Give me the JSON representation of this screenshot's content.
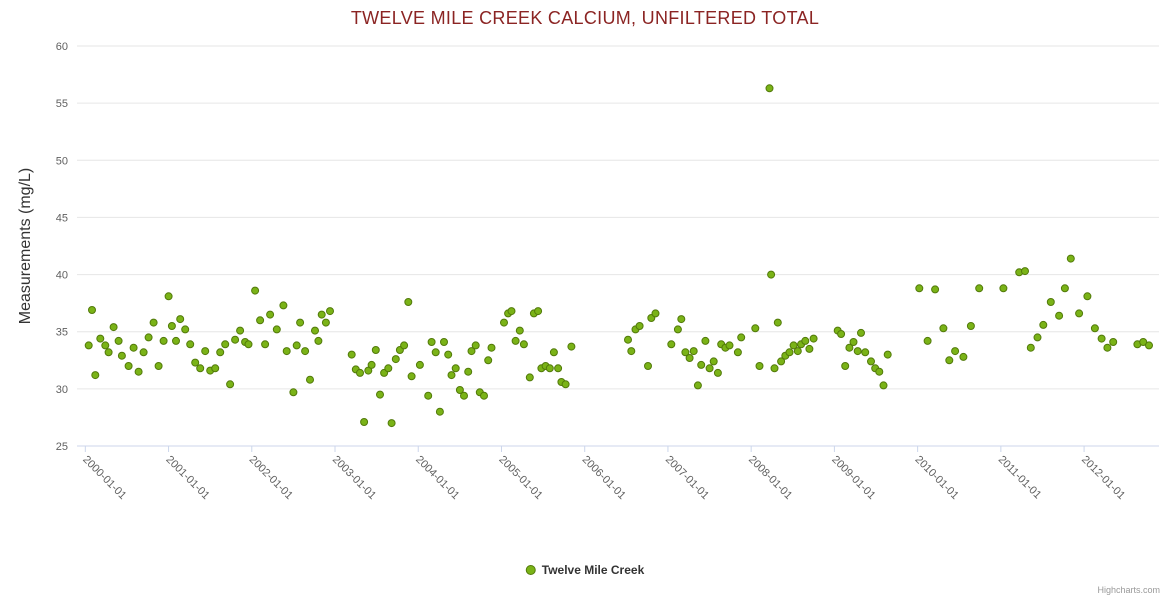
{
  "page": {
    "credits": "Highcharts.com"
  },
  "chart_data": {
    "type": "scatter",
    "title": "TWELVE MILE CREEK CALCIUM, UNFILTERED TOTAL",
    "xlabel": "",
    "ylabel": "Measurements (mg/L)",
    "ylim": [
      25,
      60
    ],
    "xlim": [
      1999.9,
      2012.9
    ],
    "y_ticks": [
      25,
      30,
      35,
      40,
      45,
      50,
      55,
      60
    ],
    "x_tick_values": [
      2000,
      2001,
      2002,
      2003,
      2004,
      2005,
      2006,
      2007,
      2008,
      2009,
      2010,
      2011,
      2012
    ],
    "x_tick_labels": [
      "2000-01-01",
      "2001-01-01",
      "2002-01-01",
      "2003-01-01",
      "2004-01-01",
      "2005-01-01",
      "2006-01-01",
      "2007-01-01",
      "2008-01-01",
      "2009-01-01",
      "2010-01-01",
      "2011-01-01",
      "2012-01-01"
    ],
    "grid": "horizontal-only",
    "legend_position": "bottom-center",
    "colors": {
      "point_fill": "#7ab317",
      "point_stroke": "#527a0a",
      "title": "#8b2423",
      "axis_label": "#606060",
      "grid_line": "#e6e6e6",
      "axis_line": "#ccd6eb"
    },
    "series": [
      {
        "name": "Twelve Mile Creek",
        "points": [
          [
            2000.04,
            33.8
          ],
          [
            2000.08,
            36.9
          ],
          [
            2000.12,
            31.2
          ],
          [
            2000.18,
            34.4
          ],
          [
            2000.24,
            33.8
          ],
          [
            2000.28,
            33.2
          ],
          [
            2000.34,
            35.4
          ],
          [
            2000.4,
            34.2
          ],
          [
            2000.44,
            32.9
          ],
          [
            2000.52,
            32.0
          ],
          [
            2000.58,
            33.6
          ],
          [
            2000.64,
            31.5
          ],
          [
            2000.7,
            33.2
          ],
          [
            2000.76,
            34.5
          ],
          [
            2000.82,
            35.8
          ],
          [
            2000.88,
            32.0
          ],
          [
            2000.94,
            34.2
          ],
          [
            2001.0,
            38.1
          ],
          [
            2001.04,
            35.5
          ],
          [
            2001.09,
            34.2
          ],
          [
            2001.14,
            36.1
          ],
          [
            2001.2,
            35.2
          ],
          [
            2001.26,
            33.9
          ],
          [
            2001.32,
            32.3
          ],
          [
            2001.38,
            31.8
          ],
          [
            2001.44,
            33.3
          ],
          [
            2001.5,
            31.6
          ],
          [
            2001.56,
            31.8
          ],
          [
            2001.62,
            33.2
          ],
          [
            2001.68,
            33.9
          ],
          [
            2001.74,
            30.4
          ],
          [
            2001.8,
            34.3
          ],
          [
            2001.86,
            35.1
          ],
          [
            2001.92,
            34.1
          ],
          [
            2001.96,
            33.9
          ],
          [
            2002.04,
            38.6
          ],
          [
            2002.1,
            36.0
          ],
          [
            2002.16,
            33.9
          ],
          [
            2002.22,
            36.5
          ],
          [
            2002.3,
            35.2
          ],
          [
            2002.38,
            37.3
          ],
          [
            2002.42,
            33.3
          ],
          [
            2002.5,
            29.7
          ],
          [
            2002.54,
            33.8
          ],
          [
            2002.58,
            35.8
          ],
          [
            2002.64,
            33.3
          ],
          [
            2002.7,
            30.8
          ],
          [
            2002.76,
            35.1
          ],
          [
            2002.8,
            34.2
          ],
          [
            2002.84,
            36.5
          ],
          [
            2002.89,
            35.8
          ],
          [
            2002.94,
            36.8
          ],
          [
            2003.2,
            33.0
          ],
          [
            2003.25,
            31.7
          ],
          [
            2003.3,
            31.4
          ],
          [
            2003.35,
            27.1
          ],
          [
            2003.4,
            31.6
          ],
          [
            2003.44,
            32.1
          ],
          [
            2003.49,
            33.4
          ],
          [
            2003.54,
            29.5
          ],
          [
            2003.59,
            31.4
          ],
          [
            2003.64,
            31.8
          ],
          [
            2003.68,
            27.0
          ],
          [
            2003.73,
            32.6
          ],
          [
            2003.78,
            33.4
          ],
          [
            2003.83,
            33.8
          ],
          [
            2003.88,
            37.6
          ],
          [
            2003.92,
            31.1
          ],
          [
            2004.02,
            32.1
          ],
          [
            2004.12,
            29.4
          ],
          [
            2004.16,
            34.1
          ],
          [
            2004.21,
            33.2
          ],
          [
            2004.26,
            28.0
          ],
          [
            2004.31,
            34.1
          ],
          [
            2004.36,
            33.0
          ],
          [
            2004.4,
            31.2
          ],
          [
            2004.45,
            31.8
          ],
          [
            2004.5,
            29.9
          ],
          [
            2004.55,
            29.4
          ],
          [
            2004.6,
            31.5
          ],
          [
            2004.64,
            33.3
          ],
          [
            2004.69,
            33.8
          ],
          [
            2004.74,
            29.7
          ],
          [
            2004.79,
            29.4
          ],
          [
            2004.84,
            32.5
          ],
          [
            2004.88,
            33.6
          ],
          [
            2005.03,
            35.8
          ],
          [
            2005.08,
            36.6
          ],
          [
            2005.12,
            36.8
          ],
          [
            2005.17,
            34.2
          ],
          [
            2005.22,
            35.1
          ],
          [
            2005.27,
            33.9
          ],
          [
            2005.34,
            31.0
          ],
          [
            2005.39,
            36.6
          ],
          [
            2005.44,
            36.8
          ],
          [
            2005.48,
            31.8
          ],
          [
            2005.53,
            32.0
          ],
          [
            2005.58,
            31.8
          ],
          [
            2005.63,
            33.2
          ],
          [
            2005.68,
            31.8
          ],
          [
            2005.72,
            30.6
          ],
          [
            2005.77,
            30.4
          ],
          [
            2005.84,
            33.7
          ],
          [
            2006.52,
            34.3
          ],
          [
            2006.56,
            33.3
          ],
          [
            2006.61,
            35.2
          ],
          [
            2006.66,
            35.5
          ],
          [
            2006.76,
            32.0
          ],
          [
            2006.8,
            36.2
          ],
          [
            2006.85,
            36.6
          ],
          [
            2007.04,
            33.9
          ],
          [
            2007.12,
            35.2
          ],
          [
            2007.16,
            36.1
          ],
          [
            2007.21,
            33.2
          ],
          [
            2007.26,
            32.7
          ],
          [
            2007.31,
            33.3
          ],
          [
            2007.36,
            30.3
          ],
          [
            2007.4,
            32.1
          ],
          [
            2007.45,
            34.2
          ],
          [
            2007.5,
            31.8
          ],
          [
            2007.55,
            32.4
          ],
          [
            2007.6,
            31.4
          ],
          [
            2007.64,
            33.9
          ],
          [
            2007.69,
            33.6
          ],
          [
            2007.74,
            33.8
          ],
          [
            2007.84,
            33.2
          ],
          [
            2007.88,
            34.5
          ],
          [
            2008.05,
            35.3
          ],
          [
            2008.1,
            32.0
          ],
          [
            2008.22,
            56.3
          ],
          [
            2008.24,
            40.0
          ],
          [
            2008.28,
            31.8
          ],
          [
            2008.32,
            35.8
          ],
          [
            2008.36,
            32.4
          ],
          [
            2008.41,
            32.9
          ],
          [
            2008.46,
            33.2
          ],
          [
            2008.51,
            33.8
          ],
          [
            2008.56,
            33.3
          ],
          [
            2008.6,
            33.9
          ],
          [
            2008.65,
            34.2
          ],
          [
            2008.7,
            33.5
          ],
          [
            2008.75,
            34.4
          ],
          [
            2009.04,
            35.1
          ],
          [
            2009.08,
            34.8
          ],
          [
            2009.13,
            32.0
          ],
          [
            2009.18,
            33.6
          ],
          [
            2009.23,
            34.1
          ],
          [
            2009.28,
            33.3
          ],
          [
            2009.32,
            34.9
          ],
          [
            2009.37,
            33.2
          ],
          [
            2009.44,
            32.4
          ],
          [
            2009.49,
            31.8
          ],
          [
            2009.54,
            31.5
          ],
          [
            2009.59,
            30.3
          ],
          [
            2009.64,
            33.0
          ],
          [
            2010.02,
            38.8
          ],
          [
            2010.12,
            34.2
          ],
          [
            2010.21,
            38.7
          ],
          [
            2010.31,
            35.3
          ],
          [
            2010.38,
            32.5
          ],
          [
            2010.45,
            33.3
          ],
          [
            2010.55,
            32.8
          ],
          [
            2010.64,
            35.5
          ],
          [
            2010.74,
            38.8
          ],
          [
            2011.03,
            38.8
          ],
          [
            2011.22,
            40.2
          ],
          [
            2011.29,
            40.3
          ],
          [
            2011.36,
            33.6
          ],
          [
            2011.44,
            34.5
          ],
          [
            2011.51,
            35.6
          ],
          [
            2011.6,
            37.6
          ],
          [
            2011.7,
            36.4
          ],
          [
            2011.77,
            38.8
          ],
          [
            2011.84,
            41.4
          ],
          [
            2011.94,
            36.6
          ],
          [
            2012.04,
            38.1
          ],
          [
            2012.13,
            35.3
          ],
          [
            2012.21,
            34.4
          ],
          [
            2012.28,
            33.6
          ],
          [
            2012.35,
            34.1
          ],
          [
            2012.64,
            33.9
          ],
          [
            2012.71,
            34.1
          ],
          [
            2012.78,
            33.8
          ]
        ]
      }
    ]
  }
}
